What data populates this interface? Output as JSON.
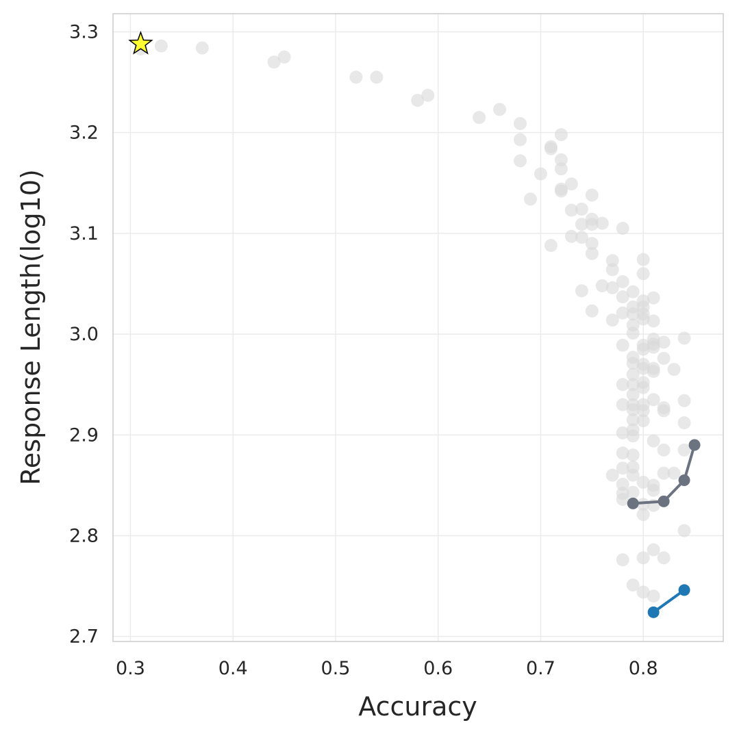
{
  "chart_data": {
    "type": "scatter",
    "title": "",
    "xlabel": "Accuracy",
    "ylabel": "Response Length(log10)",
    "xlim": [
      0.283,
      0.878
    ],
    "ylim": [
      2.695,
      3.318
    ],
    "xticks": [
      0.3,
      0.4,
      0.5,
      0.6,
      0.7,
      0.8
    ],
    "xtick_labels": [
      "0.3",
      "0.4",
      "0.5",
      "0.6",
      "0.7",
      "0.8"
    ],
    "yticks": [
      2.7,
      2.8,
      2.9,
      3.0,
      3.1,
      3.2,
      3.3
    ],
    "ytick_labels": [
      "2.7",
      "2.8",
      "2.9",
      "3.0",
      "3.1",
      "3.2",
      "3.3"
    ],
    "grid": true,
    "legend": "none",
    "colors": {
      "background_points": "#d9d9d9",
      "gray_line": "#6b7280",
      "blue_line": "#1f77b4",
      "star_fill": "#ffff33",
      "star_edge": "#000000",
      "grid": "#ebebeb",
      "frame": "#cccccc"
    },
    "background_points": [
      [
        0.31,
        3.283
      ],
      [
        0.33,
        3.286
      ],
      [
        0.37,
        3.284
      ],
      [
        0.44,
        3.27
      ],
      [
        0.45,
        3.275
      ],
      [
        0.52,
        3.255
      ],
      [
        0.54,
        3.255
      ],
      [
        0.58,
        3.232
      ],
      [
        0.59,
        3.237
      ],
      [
        0.64,
        3.215
      ],
      [
        0.66,
        3.223
      ],
      [
        0.68,
        3.209
      ],
      [
        0.68,
        3.193
      ],
      [
        0.68,
        3.172
      ],
      [
        0.69,
        3.134
      ],
      [
        0.7,
        3.159
      ],
      [
        0.71,
        3.186
      ],
      [
        0.71,
        3.184
      ],
      [
        0.71,
        3.088
      ],
      [
        0.72,
        3.198
      ],
      [
        0.72,
        3.173
      ],
      [
        0.72,
        3.164
      ],
      [
        0.72,
        3.144
      ],
      [
        0.72,
        3.142
      ],
      [
        0.73,
        3.149
      ],
      [
        0.73,
        3.123
      ],
      [
        0.73,
        3.097
      ],
      [
        0.74,
        3.124
      ],
      [
        0.74,
        3.109
      ],
      [
        0.74,
        3.096
      ],
      [
        0.74,
        3.043
      ],
      [
        0.75,
        3.138
      ],
      [
        0.75,
        3.114
      ],
      [
        0.75,
        3.109
      ],
      [
        0.75,
        3.09
      ],
      [
        0.75,
        3.08
      ],
      [
        0.75,
        3.023
      ],
      [
        0.76,
        3.11
      ],
      [
        0.76,
        3.048
      ],
      [
        0.77,
        3.073
      ],
      [
        0.77,
        3.064
      ],
      [
        0.77,
        3.046
      ],
      [
        0.77,
        3.014
      ],
      [
        0.77,
        2.86
      ],
      [
        0.78,
        3.105
      ],
      [
        0.78,
        3.052
      ],
      [
        0.78,
        3.037
      ],
      [
        0.78,
        3.021
      ],
      [
        0.78,
        2.989
      ],
      [
        0.78,
        2.95
      ],
      [
        0.78,
        2.93
      ],
      [
        0.78,
        2.902
      ],
      [
        0.78,
        2.882
      ],
      [
        0.78,
        2.867
      ],
      [
        0.78,
        2.851
      ],
      [
        0.78,
        2.842
      ],
      [
        0.78,
        2.836
      ],
      [
        0.78,
        2.776
      ],
      [
        0.79,
        3.042
      ],
      [
        0.79,
        3.027
      ],
      [
        0.79,
        3.02
      ],
      [
        0.79,
        3.009
      ],
      [
        0.79,
        3.001
      ],
      [
        0.79,
        2.977
      ],
      [
        0.79,
        2.971
      ],
      [
        0.79,
        2.96
      ],
      [
        0.79,
        2.95
      ],
      [
        0.79,
        2.94
      ],
      [
        0.79,
        2.93
      ],
      [
        0.79,
        2.925
      ],
      [
        0.79,
        2.915
      ],
      [
        0.79,
        2.905
      ],
      [
        0.79,
        2.899
      ],
      [
        0.79,
        2.88
      ],
      [
        0.79,
        2.868
      ],
      [
        0.79,
        2.86
      ],
      [
        0.79,
        2.843
      ],
      [
        0.79,
        2.751
      ],
      [
        0.8,
        3.074
      ],
      [
        0.8,
        3.06
      ],
      [
        0.8,
        3.033
      ],
      [
        0.8,
        3.027
      ],
      [
        0.8,
        3.02
      ],
      [
        0.8,
        3.015
      ],
      [
        0.8,
        2.989
      ],
      [
        0.8,
        2.985
      ],
      [
        0.8,
        2.97
      ],
      [
        0.8,
        2.966
      ],
      [
        0.8,
        2.952
      ],
      [
        0.8,
        2.947
      ],
      [
        0.8,
        2.93
      ],
      [
        0.8,
        2.924
      ],
      [
        0.8,
        2.914
      ],
      [
        0.8,
        2.853
      ],
      [
        0.8,
        2.831
      ],
      [
        0.8,
        2.821
      ],
      [
        0.8,
        2.778
      ],
      [
        0.8,
        2.744
      ],
      [
        0.81,
        3.036
      ],
      [
        0.81,
        3.013
      ],
      [
        0.81,
        2.995
      ],
      [
        0.81,
        2.99
      ],
      [
        0.81,
        2.987
      ],
      [
        0.81,
        2.966
      ],
      [
        0.81,
        2.963
      ],
      [
        0.81,
        2.935
      ],
      [
        0.81,
        2.894
      ],
      [
        0.81,
        2.85
      ],
      [
        0.81,
        2.845
      ],
      [
        0.81,
        2.83
      ],
      [
        0.81,
        2.786
      ],
      [
        0.81,
        2.74
      ],
      [
        0.82,
        2.992
      ],
      [
        0.82,
        2.976
      ],
      [
        0.82,
        2.927
      ],
      [
        0.82,
        2.924
      ],
      [
        0.82,
        2.885
      ],
      [
        0.82,
        2.862
      ],
      [
        0.82,
        2.778
      ],
      [
        0.83,
        2.965
      ],
      [
        0.83,
        2.862
      ],
      [
        0.84,
        2.996
      ],
      [
        0.84,
        2.934
      ],
      [
        0.84,
        2.912
      ],
      [
        0.84,
        2.885
      ],
      [
        0.84,
        2.805
      ]
    ],
    "series": [
      {
        "color": "#6b7280",
        "points": [
          [
            0.79,
            2.832
          ],
          [
            0.82,
            2.834
          ],
          [
            0.84,
            2.855
          ],
          [
            0.85,
            2.89
          ]
        ]
      },
      {
        "color": "#1f77b4",
        "points": [
          [
            0.81,
            2.724
          ],
          [
            0.84,
            2.746
          ]
        ]
      }
    ],
    "highlight": {
      "marker": "star",
      "point": [
        0.31,
        3.288
      ]
    }
  }
}
